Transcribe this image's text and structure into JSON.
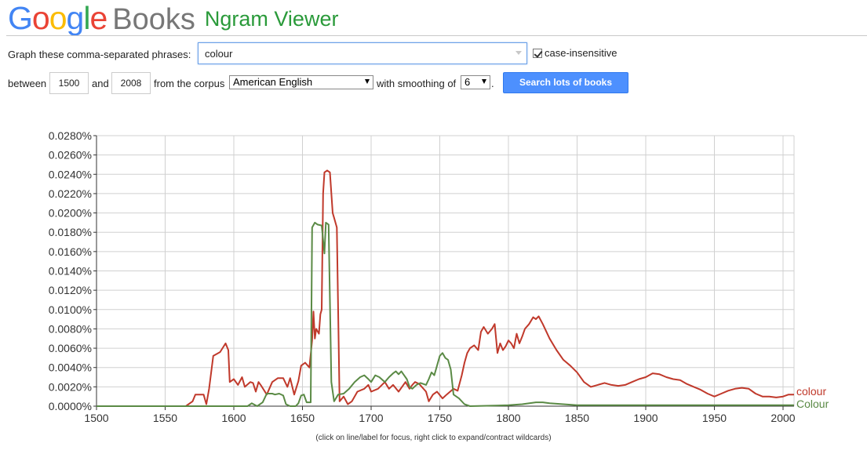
{
  "logo": {
    "google_letters": [
      {
        "ch": "G",
        "color": "#4285f4"
      },
      {
        "ch": "o",
        "color": "#ea4335"
      },
      {
        "ch": "o",
        "color": "#fbbc05"
      },
      {
        "ch": "g",
        "color": "#4285f4"
      },
      {
        "ch": "l",
        "color": "#34a853"
      },
      {
        "ch": "e",
        "color": "#ea4335"
      }
    ],
    "books": "Books",
    "product": "Ngram Viewer"
  },
  "form": {
    "phrases_label": "Graph these comma-separated phrases:",
    "query_value": "colour",
    "case_insensitive_label": "case-insensitive",
    "case_insensitive_checked": true,
    "between_label": "between",
    "start_year": "1500",
    "and_label": "and",
    "end_year": "2008",
    "corpus_label": "from the corpus",
    "corpus_value": "American English",
    "smoothing_label": "with smoothing of",
    "smoothing_value": "6",
    "period": ".",
    "search_button": "Search lots of books"
  },
  "caption": "(click on line/label for focus, right click to expand/contract wildcards)",
  "colors": {
    "colour": "#c0392b",
    "Colour": "#5a8a45",
    "grid": "#d0d0d0",
    "axis": "#333333"
  },
  "chart_data": {
    "type": "line",
    "xlim": [
      1500,
      2008
    ],
    "ylim": [
      0,
      0.028
    ],
    "x_ticks": [
      "1500",
      "1550",
      "1600",
      "1650",
      "1700",
      "1750",
      "1800",
      "1850",
      "1900",
      "1950",
      "2000"
    ],
    "y_ticks": [
      "0.0000%",
      "0.0020%",
      "0.0040%",
      "0.0060%",
      "0.0080%",
      "0.0100%",
      "0.0120%",
      "0.0140%",
      "0.0160%",
      "0.0180%",
      "0.0200%",
      "0.0220%",
      "0.0240%",
      "0.0260%",
      "0.0280%"
    ],
    "grid": true,
    "legend_placement": "right-end-of-lines",
    "series": [
      {
        "name": "colour",
        "color": "#c0392b",
        "points": [
          [
            1500,
            0
          ],
          [
            1565,
            0
          ],
          [
            1570,
            0.0005
          ],
          [
            1572,
            0.0012
          ],
          [
            1578,
            0.0012
          ],
          [
            1580,
            0.0002
          ],
          [
            1582,
            0.0018
          ],
          [
            1585,
            0.0052
          ],
          [
            1590,
            0.0056
          ],
          [
            1594,
            0.0065
          ],
          [
            1596,
            0.0058
          ],
          [
            1597,
            0.0025
          ],
          [
            1600,
            0.0028
          ],
          [
            1603,
            0.0022
          ],
          [
            1606,
            0.003
          ],
          [
            1608,
            0.002
          ],
          [
            1612,
            0.0025
          ],
          [
            1614,
            0.0024
          ],
          [
            1616,
            0.0015
          ],
          [
            1618,
            0.0025
          ],
          [
            1620,
            0.0021
          ],
          [
            1624,
            0.0012
          ],
          [
            1628,
            0.0025
          ],
          [
            1632,
            0.0029
          ],
          [
            1636,
            0.0029
          ],
          [
            1639,
            0.002
          ],
          [
            1641,
            0.0029
          ],
          [
            1644,
            0.0012
          ],
          [
            1647,
            0.0026
          ],
          [
            1649,
            0.0042
          ],
          [
            1652,
            0.0045
          ],
          [
            1655,
            0.004
          ],
          [
            1657,
            0.0068
          ],
          [
            1658,
            0.0098
          ],
          [
            1659,
            0.007
          ],
          [
            1660,
            0.008
          ],
          [
            1662,
            0.0075
          ],
          [
            1663,
            0.0095
          ],
          [
            1664,
            0.01
          ],
          [
            1665,
            0.022
          ],
          [
            1666,
            0.0242
          ],
          [
            1668,
            0.0244
          ],
          [
            1670,
            0.0242
          ],
          [
            1672,
            0.02
          ],
          [
            1673,
            0.0195
          ],
          [
            1675,
            0.0185
          ],
          [
            1677,
            0.0005
          ],
          [
            1680,
            0.001
          ],
          [
            1683,
            0.0002
          ],
          [
            1686,
            0.0005
          ],
          [
            1690,
            0.0015
          ],
          [
            1695,
            0.0018
          ],
          [
            1698,
            0.0022
          ],
          [
            1700,
            0.0015
          ],
          [
            1705,
            0.0018
          ],
          [
            1710,
            0.0025
          ],
          [
            1713,
            0.0018
          ],
          [
            1716,
            0.0022
          ],
          [
            1720,
            0.0015
          ],
          [
            1725,
            0.0025
          ],
          [
            1728,
            0.0018
          ],
          [
            1730,
            0.0022
          ],
          [
            1732,
            0.0025
          ],
          [
            1735,
            0.0023
          ],
          [
            1740,
            0.0015
          ],
          [
            1742,
            0.0005
          ],
          [
            1745,
            0.0012
          ],
          [
            1748,
            0.0015
          ],
          [
            1752,
            0.0008
          ],
          [
            1755,
            0.0012
          ],
          [
            1760,
            0.0018
          ],
          [
            1763,
            0.0016
          ],
          [
            1766,
            0.0032
          ],
          [
            1768,
            0.0045
          ],
          [
            1770,
            0.0055
          ],
          [
            1772,
            0.006
          ],
          [
            1775,
            0.0063
          ],
          [
            1778,
            0.0058
          ],
          [
            1780,
            0.0077
          ],
          [
            1782,
            0.0082
          ],
          [
            1785,
            0.0075
          ],
          [
            1788,
            0.008
          ],
          [
            1790,
            0.0085
          ],
          [
            1792,
            0.0055
          ],
          [
            1794,
            0.0065
          ],
          [
            1796,
            0.0058
          ],
          [
            1798,
            0.0062
          ],
          [
            1800,
            0.0068
          ],
          [
            1802,
            0.0065
          ],
          [
            1804,
            0.006
          ],
          [
            1806,
            0.0075
          ],
          [
            1808,
            0.0065
          ],
          [
            1810,
            0.0072
          ],
          [
            1812,
            0.008
          ],
          [
            1815,
            0.0085
          ],
          [
            1818,
            0.0092
          ],
          [
            1820,
            0.009
          ],
          [
            1822,
            0.0093
          ],
          [
            1825,
            0.0085
          ],
          [
            1830,
            0.007
          ],
          [
            1835,
            0.0058
          ],
          [
            1840,
            0.0048
          ],
          [
            1845,
            0.0042
          ],
          [
            1850,
            0.0035
          ],
          [
            1855,
            0.0025
          ],
          [
            1860,
            0.002
          ],
          [
            1865,
            0.0022
          ],
          [
            1870,
            0.0024
          ],
          [
            1875,
            0.0022
          ],
          [
            1880,
            0.0021
          ],
          [
            1885,
            0.0022
          ],
          [
            1890,
            0.0025
          ],
          [
            1895,
            0.0028
          ],
          [
            1900,
            0.003
          ],
          [
            1905,
            0.0034
          ],
          [
            1910,
            0.0033
          ],
          [
            1915,
            0.003
          ],
          [
            1920,
            0.0028
          ],
          [
            1925,
            0.0027
          ],
          [
            1930,
            0.0023
          ],
          [
            1935,
            0.002
          ],
          [
            1940,
            0.0017
          ],
          [
            1945,
            0.0013
          ],
          [
            1950,
            0.001
          ],
          [
            1955,
            0.0013
          ],
          [
            1960,
            0.0016
          ],
          [
            1965,
            0.0018
          ],
          [
            1970,
            0.0019
          ],
          [
            1975,
            0.0018
          ],
          [
            1980,
            0.0013
          ],
          [
            1985,
            0.001
          ],
          [
            1990,
            0.001
          ],
          [
            1995,
            0.0009
          ],
          [
            2000,
            0.001
          ],
          [
            2004,
            0.0012
          ],
          [
            2008,
            0.0012
          ]
        ]
      },
      {
        "name": "Colour",
        "color": "#5a8a45",
        "points": [
          [
            1500,
            0
          ],
          [
            1610,
            0
          ],
          [
            1613,
            0.0003
          ],
          [
            1617,
            0
          ],
          [
            1621,
            0.0004
          ],
          [
            1624,
            0.0013
          ],
          [
            1628,
            0.0013
          ],
          [
            1630,
            0.0012
          ],
          [
            1633,
            0.0013
          ],
          [
            1636,
            0.0011
          ],
          [
            1638,
            0.0002
          ],
          [
            1641,
            0
          ],
          [
            1645,
            0
          ],
          [
            1647,
            0.0003
          ],
          [
            1649,
            0.0011
          ],
          [
            1651,
            0.0012
          ],
          [
            1653,
            0.0004
          ],
          [
            1656,
            0.0004
          ],
          [
            1657,
            0.0185
          ],
          [
            1659,
            0.019
          ],
          [
            1661,
            0.0188
          ],
          [
            1664,
            0.0187
          ],
          [
            1666,
            0.0158
          ],
          [
            1667,
            0.019
          ],
          [
            1669,
            0.0188
          ],
          [
            1671,
            0.0025
          ],
          [
            1673,
            0.0005
          ],
          [
            1676,
            0.0012
          ],
          [
            1680,
            0.0013
          ],
          [
            1684,
            0.0018
          ],
          [
            1688,
            0.0025
          ],
          [
            1692,
            0.003
          ],
          [
            1695,
            0.0032
          ],
          [
            1698,
            0.0028
          ],
          [
            1700,
            0.0025
          ],
          [
            1703,
            0.0032
          ],
          [
            1706,
            0.003
          ],
          [
            1710,
            0.0025
          ],
          [
            1713,
            0.003
          ],
          [
            1716,
            0.0034
          ],
          [
            1718,
            0.0036
          ],
          [
            1720,
            0.0033
          ],
          [
            1722,
            0.0036
          ],
          [
            1724,
            0.0032
          ],
          [
            1726,
            0.0028
          ],
          [
            1728,
            0.002
          ],
          [
            1730,
            0.0018
          ],
          [
            1733,
            0.0022
          ],
          [
            1736,
            0.0024
          ],
          [
            1740,
            0.0022
          ],
          [
            1742,
            0.0028
          ],
          [
            1744,
            0.0035
          ],
          [
            1746,
            0.0032
          ],
          [
            1748,
            0.0042
          ],
          [
            1750,
            0.0052
          ],
          [
            1752,
            0.0055
          ],
          [
            1754,
            0.005
          ],
          [
            1756,
            0.0048
          ],
          [
            1758,
            0.0038
          ],
          [
            1760,
            0.0012
          ],
          [
            1764,
            0.0008
          ],
          [
            1768,
            0.0002
          ],
          [
            1772,
            0
          ],
          [
            1800,
            0.0001
          ],
          [
            1810,
            0.0002
          ],
          [
            1820,
            0.0004
          ],
          [
            1825,
            0.0004
          ],
          [
            1830,
            0.0003
          ],
          [
            1840,
            0.0002
          ],
          [
            1850,
            0.0001
          ],
          [
            1900,
            0.0001
          ],
          [
            1950,
            0.0001
          ],
          [
            2008,
            0.0001
          ]
        ]
      }
    ]
  }
}
